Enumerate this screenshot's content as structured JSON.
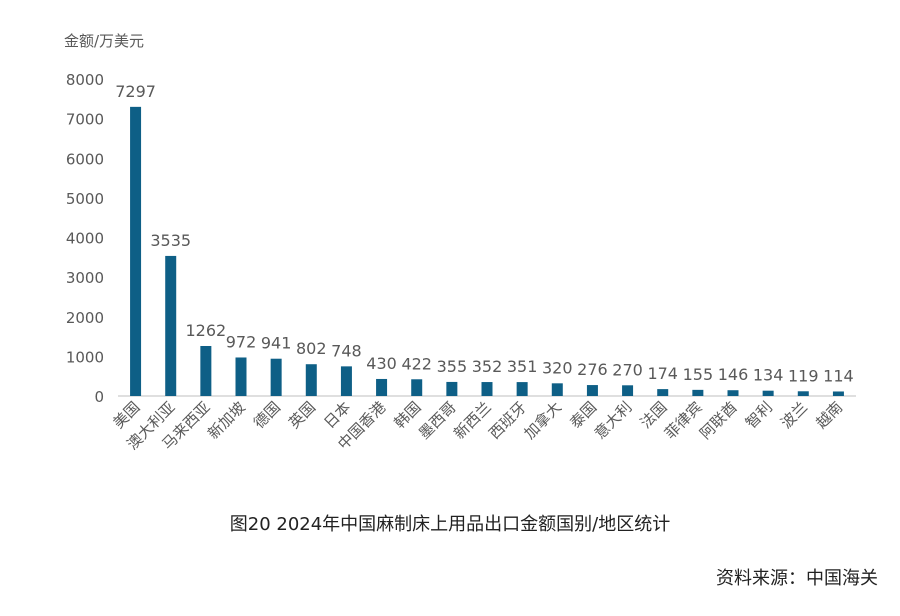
{
  "chart_data": {
    "type": "bar",
    "ylabel": "金额/万美元",
    "categories": [
      "美国",
      "澳大利亚",
      "马来西亚",
      "新加坡",
      "德国",
      "英国",
      "日本",
      "中国香港",
      "韩国",
      "墨西哥",
      "新西兰",
      "西班牙",
      "加拿大",
      "泰国",
      "意大利",
      "法国",
      "菲律宾",
      "阿联酋",
      "智利",
      "波兰",
      "越南"
    ],
    "values": [
      7297,
      3535,
      1262,
      972,
      941,
      802,
      748,
      430,
      422,
      355,
      352,
      351,
      320,
      276,
      270,
      174,
      155,
      146,
      134,
      119,
      114
    ],
    "ylim": [
      0,
      8000
    ],
    "yticks": [
      0,
      1000,
      2000,
      3000,
      4000,
      5000,
      6000,
      7000,
      8000
    ],
    "bar_color": "#0e5f86",
    "grid": false,
    "legend": "none"
  },
  "caption": "图20  2024年中国麻制床上用品出口金额国别/地区统计",
  "source": "资料来源：中国海关"
}
